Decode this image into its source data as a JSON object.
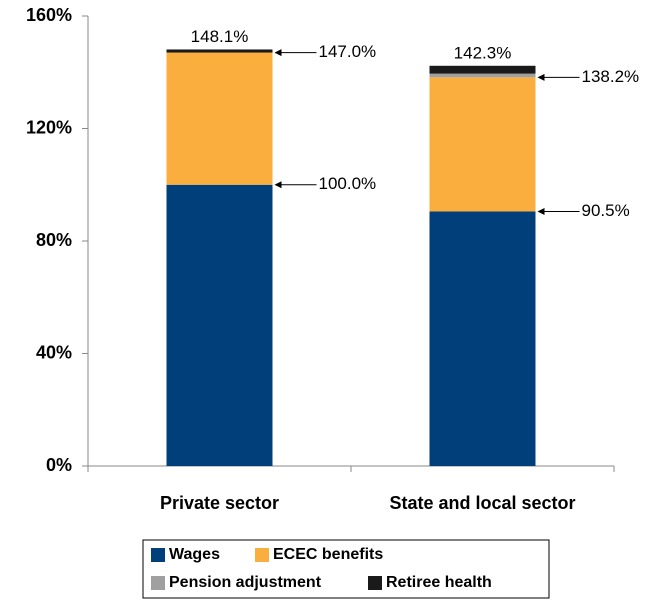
{
  "chart_data": {
    "type": "stacked-bar",
    "categories": [
      "Private sector",
      "State and local sector"
    ],
    "series": [
      {
        "name": "Wages",
        "color": "#003f7a",
        "values": [
          100.0,
          90.5
        ]
      },
      {
        "name": "ECEC benefits",
        "color": "#f9ae3e",
        "values": [
          47.0,
          47.7
        ]
      },
      {
        "name": "Pension adjustment",
        "color": "#a0a0a0",
        "values": [
          0,
          1.3
        ]
      },
      {
        "name": "Retiree health",
        "color": "#1a1a1a",
        "values": [
          1.1,
          2.8
        ]
      }
    ],
    "annotations": [
      [
        {
          "value": 148.1,
          "label": "148.1%"
        },
        {
          "value": 147.0,
          "label": "147.0%"
        },
        {
          "value": 100.0,
          "label": "100.0%"
        }
      ],
      [
        {
          "value": 142.3,
          "label": "142.3%"
        },
        {
          "value": 138.2,
          "label": "138.2%"
        },
        {
          "value": 90.5,
          "label": "90.5%"
        }
      ]
    ],
    "ylim": [
      0,
      160
    ],
    "yticks": [
      {
        "value": 0,
        "label": "0%"
      },
      {
        "value": 40,
        "label": "40%"
      },
      {
        "value": 80,
        "label": "80%"
      },
      {
        "value": 120,
        "label": "120%"
      },
      {
        "value": 160,
        "label": "160%"
      }
    ],
    "grid": false
  }
}
